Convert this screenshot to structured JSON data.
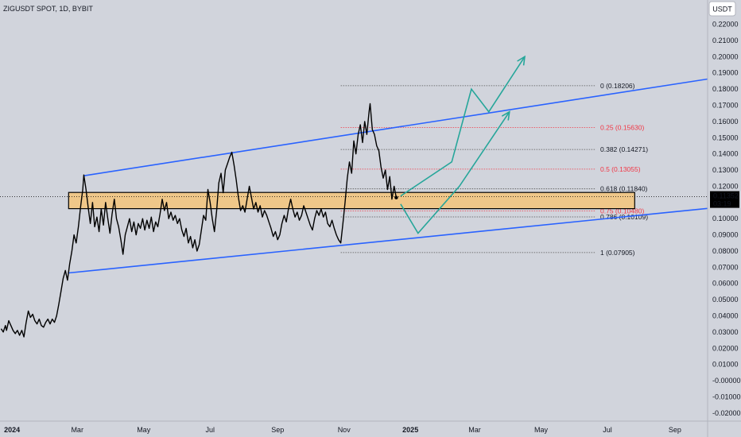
{
  "chart_data": {
    "type": "line",
    "title": "ZIGUSDT SPOT, 1D, BYBIT",
    "currency_label": "USDT",
    "colors": {
      "background": "#d1d4dc",
      "price_line": "#000000",
      "channel": "#2962ff",
      "projection": "#26a69a",
      "zone_fill": "#f5c47a",
      "zone_border": "#000000",
      "fib_gray": "#555555",
      "fib_red": "#f23645"
    },
    "y_axis": {
      "min": -0.025,
      "max": 0.235,
      "ticks": [
        0.22,
        0.21,
        0.2,
        0.19,
        0.18,
        0.17,
        0.16,
        0.15,
        0.14,
        0.13,
        0.12,
        0.11,
        0.1,
        0.09,
        0.08,
        0.07,
        0.06,
        0.05,
        0.04,
        0.03,
        0.02,
        0.01,
        -0.0,
        -0.01,
        -0.02
      ],
      "tick_labels": [
        "0.22000",
        "0.21000",
        "0.20000",
        "0.19000",
        "0.18000",
        "0.17000",
        "0.16000",
        "0.15000",
        "0.14000",
        "0.13000",
        "0.12000",
        "0.11000",
        "0.10000",
        "0.09000",
        "0.08000",
        "0.07000",
        "0.06000",
        "0.05000",
        "0.04000",
        "0.03000",
        "0.02000",
        "0.01000",
        "-0.00000",
        "-0.01000",
        "-0.02000"
      ]
    },
    "x_axis": {
      "start": "2023-12-21",
      "end": "2025-10-01",
      "ticks": [
        {
          "date": "2024-01-01",
          "label": "2024"
        },
        {
          "date": "2024-03-01",
          "label": "Mar"
        },
        {
          "date": "2024-05-01",
          "label": "May"
        },
        {
          "date": "2024-07-01",
          "label": "Jul"
        },
        {
          "date": "2024-09-01",
          "label": "Sep"
        },
        {
          "date": "2024-11-01",
          "label": "Nov"
        },
        {
          "date": "2025-01-01",
          "label": "2025"
        },
        {
          "date": "2025-03-01",
          "label": "Mar"
        },
        {
          "date": "2025-05-01",
          "label": "May"
        },
        {
          "date": "2025-07-01",
          "label": "Jul"
        },
        {
          "date": "2025-09-01",
          "label": "Sep"
        }
      ]
    },
    "current_price": {
      "value": 0.11352,
      "label": "0.11352",
      "countdown": "03:19"
    },
    "series": [
      {
        "values": [
          [
            "2023-12-22",
            0.032
          ],
          [
            "2023-12-24",
            0.03
          ],
          [
            "2023-12-26",
            0.034
          ],
          [
            "2023-12-27",
            0.031
          ],
          [
            "2023-12-29",
            0.037
          ],
          [
            "2023-12-31",
            0.034
          ],
          [
            "2024-01-02",
            0.031
          ],
          [
            "2024-01-04",
            0.029
          ],
          [
            "2024-01-06",
            0.031
          ],
          [
            "2024-01-08",
            0.028
          ],
          [
            "2024-01-10",
            0.031
          ],
          [
            "2024-01-12",
            0.027
          ],
          [
            "2024-01-14",
            0.036
          ],
          [
            "2024-01-16",
            0.043
          ],
          [
            "2024-01-18",
            0.039
          ],
          [
            "2024-01-20",
            0.041
          ],
          [
            "2024-01-22",
            0.037
          ],
          [
            "2024-01-24",
            0.035
          ],
          [
            "2024-01-26",
            0.038
          ],
          [
            "2024-01-28",
            0.034
          ],
          [
            "2024-01-30",
            0.033
          ],
          [
            "2024-02-01",
            0.036
          ],
          [
            "2024-02-03",
            0.038
          ],
          [
            "2024-02-05",
            0.035
          ],
          [
            "2024-02-07",
            0.038
          ],
          [
            "2024-02-09",
            0.036
          ],
          [
            "2024-02-11",
            0.04
          ],
          [
            "2024-02-13",
            0.047
          ],
          [
            "2024-02-15",
            0.055
          ],
          [
            "2024-02-17",
            0.063
          ],
          [
            "2024-02-19",
            0.068
          ],
          [
            "2024-02-21",
            0.062
          ],
          [
            "2024-02-23",
            0.072
          ],
          [
            "2024-02-25",
            0.08
          ],
          [
            "2024-02-27",
            0.09
          ],
          [
            "2024-02-29",
            0.085
          ],
          [
            "2024-03-02",
            0.095
          ],
          [
            "2024-03-04",
            0.107
          ],
          [
            "2024-03-06",
            0.118
          ],
          [
            "2024-03-07",
            0.127
          ],
          [
            "2024-03-09",
            0.118
          ],
          [
            "2024-03-11",
            0.107
          ],
          [
            "2024-03-13",
            0.097
          ],
          [
            "2024-03-15",
            0.11
          ],
          [
            "2024-03-17",
            0.095
          ],
          [
            "2024-03-19",
            0.101
          ],
          [
            "2024-03-21",
            0.092
          ],
          [
            "2024-03-23",
            0.106
          ],
          [
            "2024-03-25",
            0.096
          ],
          [
            "2024-03-27",
            0.11
          ],
          [
            "2024-03-29",
            0.1
          ],
          [
            "2024-03-31",
            0.091
          ],
          [
            "2024-04-02",
            0.103
          ],
          [
            "2024-04-04",
            0.112
          ],
          [
            "2024-04-06",
            0.1
          ],
          [
            "2024-04-08",
            0.095
          ],
          [
            "2024-04-10",
            0.087
          ],
          [
            "2024-04-12",
            0.078
          ],
          [
            "2024-04-14",
            0.09
          ],
          [
            "2024-04-16",
            0.095
          ],
          [
            "2024-04-18",
            0.1
          ],
          [
            "2024-04-20",
            0.092
          ],
          [
            "2024-04-22",
            0.098
          ],
          [
            "2024-04-24",
            0.09
          ],
          [
            "2024-04-26",
            0.097
          ],
          [
            "2024-04-28",
            0.094
          ],
          [
            "2024-04-30",
            0.1
          ],
          [
            "2024-05-02",
            0.093
          ],
          [
            "2024-05-04",
            0.099
          ],
          [
            "2024-05-06",
            0.094
          ],
          [
            "2024-05-08",
            0.101
          ],
          [
            "2024-05-10",
            0.092
          ],
          [
            "2024-05-12",
            0.098
          ],
          [
            "2024-05-14",
            0.095
          ],
          [
            "2024-05-16",
            0.103
          ],
          [
            "2024-05-18",
            0.112
          ],
          [
            "2024-05-20",
            0.105
          ],
          [
            "2024-05-22",
            0.11
          ],
          [
            "2024-05-24",
            0.1
          ],
          [
            "2024-05-26",
            0.104
          ],
          [
            "2024-05-28",
            0.099
          ],
          [
            "2024-05-30",
            0.102
          ],
          [
            "2024-06-01",
            0.097
          ],
          [
            "2024-06-03",
            0.1
          ],
          [
            "2024-06-05",
            0.093
          ],
          [
            "2024-06-07",
            0.089
          ],
          [
            "2024-06-09",
            0.094
          ],
          [
            "2024-06-11",
            0.085
          ],
          [
            "2024-06-13",
            0.089
          ],
          [
            "2024-06-15",
            0.082
          ],
          [
            "2024-06-17",
            0.087
          ],
          [
            "2024-06-19",
            0.08
          ],
          [
            "2024-06-21",
            0.084
          ],
          [
            "2024-06-23",
            0.093
          ],
          [
            "2024-06-25",
            0.102
          ],
          [
            "2024-06-27",
            0.099
          ],
          [
            "2024-06-29",
            0.118
          ],
          [
            "2024-07-01",
            0.11
          ],
          [
            "2024-07-03",
            0.1
          ],
          [
            "2024-07-05",
            0.092
          ],
          [
            "2024-07-07",
            0.105
          ],
          [
            "2024-07-09",
            0.122
          ],
          [
            "2024-07-11",
            0.128
          ],
          [
            "2024-07-13",
            0.116
          ],
          [
            "2024-07-15",
            0.13
          ],
          [
            "2024-07-17",
            0.134
          ],
          [
            "2024-07-19",
            0.138
          ],
          [
            "2024-07-21",
            0.141
          ],
          [
            "2024-07-23",
            0.133
          ],
          [
            "2024-07-25",
            0.124
          ],
          [
            "2024-07-27",
            0.113
          ],
          [
            "2024-07-29",
            0.105
          ],
          [
            "2024-07-31",
            0.108
          ],
          [
            "2024-08-02",
            0.104
          ],
          [
            "2024-08-04",
            0.112
          ],
          [
            "2024-08-06",
            0.12
          ],
          [
            "2024-08-08",
            0.113
          ],
          [
            "2024-08-10",
            0.106
          ],
          [
            "2024-08-12",
            0.11
          ],
          [
            "2024-08-14",
            0.104
          ],
          [
            "2024-08-16",
            0.108
          ],
          [
            "2024-08-18",
            0.101
          ],
          [
            "2024-08-20",
            0.105
          ],
          [
            "2024-08-22",
            0.102
          ],
          [
            "2024-08-24",
            0.098
          ],
          [
            "2024-08-26",
            0.094
          ],
          [
            "2024-08-28",
            0.089
          ],
          [
            "2024-08-30",
            0.092
          ],
          [
            "2024-09-01",
            0.087
          ],
          [
            "2024-09-03",
            0.09
          ],
          [
            "2024-09-05",
            0.097
          ],
          [
            "2024-09-07",
            0.102
          ],
          [
            "2024-09-09",
            0.098
          ],
          [
            "2024-09-11",
            0.106
          ],
          [
            "2024-09-13",
            0.112
          ],
          [
            "2024-09-15",
            0.106
          ],
          [
            "2024-09-17",
            0.101
          ],
          [
            "2024-09-19",
            0.104
          ],
          [
            "2024-09-21",
            0.099
          ],
          [
            "2024-09-23",
            0.102
          ],
          [
            "2024-09-25",
            0.108
          ],
          [
            "2024-09-27",
            0.104
          ],
          [
            "2024-09-29",
            0.1
          ],
          [
            "2024-10-01",
            0.096
          ],
          [
            "2024-10-03",
            0.093
          ],
          [
            "2024-10-05",
            0.1
          ],
          [
            "2024-10-07",
            0.105
          ],
          [
            "2024-10-09",
            0.102
          ],
          [
            "2024-10-11",
            0.106
          ],
          [
            "2024-10-13",
            0.101
          ],
          [
            "2024-10-15",
            0.104
          ],
          [
            "2024-10-17",
            0.097
          ],
          [
            "2024-10-19",
            0.095
          ],
          [
            "2024-10-21",
            0.099
          ],
          [
            "2024-10-23",
            0.094
          ],
          [
            "2024-10-25",
            0.09
          ],
          [
            "2024-10-27",
            0.087
          ],
          [
            "2024-10-29",
            0.085
          ],
          [
            "2024-10-31",
            0.097
          ],
          [
            "2024-11-02",
            0.11
          ],
          [
            "2024-11-04",
            0.125
          ],
          [
            "2024-11-06",
            0.135
          ],
          [
            "2024-11-08",
            0.128
          ],
          [
            "2024-11-10",
            0.148
          ],
          [
            "2024-11-12",
            0.14
          ],
          [
            "2024-11-14",
            0.152
          ],
          [
            "2024-11-16",
            0.158
          ],
          [
            "2024-11-18",
            0.147
          ],
          [
            "2024-11-20",
            0.16
          ],
          [
            "2024-11-22",
            0.152
          ],
          [
            "2024-11-24",
            0.166
          ],
          [
            "2024-11-25",
            0.171
          ],
          [
            "2024-11-27",
            0.155
          ],
          [
            "2024-11-29",
            0.152
          ],
          [
            "2024-12-01",
            0.145
          ],
          [
            "2024-12-03",
            0.142
          ],
          [
            "2024-12-05",
            0.132
          ],
          [
            "2024-12-07",
            0.125
          ],
          [
            "2024-12-09",
            0.13
          ],
          [
            "2024-12-11",
            0.118
          ],
          [
            "2024-12-13",
            0.126
          ],
          [
            "2024-12-15",
            0.112
          ],
          [
            "2024-12-17",
            0.12
          ],
          [
            "2024-12-19",
            0.113
          ]
        ]
      }
    ],
    "channel_lines": [
      {
        "from": [
          "2024-03-07",
          0.1265
        ],
        "to": [
          "2025-10-01",
          0.1862
        ]
      },
      {
        "from": [
          "2024-02-22",
          0.0665
        ],
        "to": [
          "2025-10-01",
          0.1063
        ]
      }
    ],
    "zone": {
      "from_date": "2024-02-22",
      "to_date": "2025-07-26",
      "low": 0.1062,
      "high": 0.1162
    },
    "fib_start_date": "2024-10-29",
    "fib_end_date": "2025-06-20",
    "fib_levels": [
      {
        "value": 0.18206,
        "label": "0 (0.18206)",
        "color": "gray"
      },
      {
        "value": 0.1563,
        "label": "0.25 (0.15630)",
        "color": "red"
      },
      {
        "value": 0.14271,
        "label": "0.382 (0.14271)",
        "color": "gray"
      },
      {
        "value": 0.13055,
        "label": "0.5 (0.13055)",
        "color": "red"
      },
      {
        "value": 0.1184,
        "label": "0.618 (0.11840)",
        "color": "gray"
      },
      {
        "value": 0.1048,
        "label": "0.75 (0.10480)",
        "color": "red"
      },
      {
        "value": 0.10109,
        "label": "0.786 (0.10109)",
        "color": "gray"
      },
      {
        "value": 0.07905,
        "label": "1 (0.07905)",
        "color": "gray"
      }
    ],
    "projection": {
      "points": [
        [
          "2024-12-23",
          0.114
        ],
        [
          "2025-02-08",
          0.135
        ],
        [
          "2025-02-26",
          0.18
        ],
        [
          "2025-03-14",
          0.166
        ],
        [
          "2025-04-16",
          0.2
        ]
      ],
      "second": [
        [
          "2024-12-23",
          0.109
        ],
        [
          "2025-01-08",
          0.091
        ],
        [
          "2025-02-15",
          0.12
        ],
        [
          "2025-04-02",
          0.166
        ]
      ]
    }
  }
}
